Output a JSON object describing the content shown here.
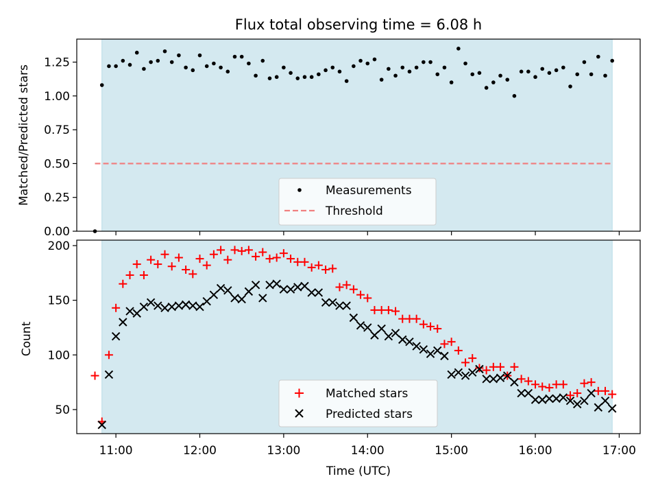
{
  "chart_data": [
    {
      "type": "scatter",
      "title": "Flux total observing time = 6.08 h",
      "ylabel": "Matched/Predicted stars",
      "xlabel": "",
      "xlim": [
        "10:32",
        "17:15"
      ],
      "ylim": [
        0,
        1.42
      ],
      "yticks": [
        "0.00",
        "0.25",
        "0.50",
        "0.75",
        "1.00",
        "1.25"
      ],
      "shaded_interval": [
        "10:50",
        "16:55"
      ],
      "shade_color": "#d4e9f0",
      "legend_position": "lower center",
      "series": [
        {
          "name": "Measurements",
          "marker": "dot",
          "color": "#000000",
          "x": [
            "10:45",
            "10:50",
            "10:55",
            "11:00",
            "11:05",
            "11:10",
            "11:15",
            "11:20",
            "11:25",
            "11:30",
            "11:35",
            "11:40",
            "11:45",
            "11:50",
            "11:55",
            "12:00",
            "12:05",
            "12:10",
            "12:15",
            "12:20",
            "12:25",
            "12:30",
            "12:35",
            "12:40",
            "12:45",
            "12:50",
            "12:55",
            "13:00",
            "13:05",
            "13:10",
            "13:15",
            "13:20",
            "13:25",
            "13:30",
            "13:35",
            "13:40",
            "13:45",
            "13:50",
            "13:55",
            "14:00",
            "14:05",
            "14:10",
            "14:15",
            "14:20",
            "14:25",
            "14:30",
            "14:35",
            "14:40",
            "14:45",
            "14:50",
            "14:55",
            "15:00",
            "15:05",
            "15:10",
            "15:15",
            "15:20",
            "15:25",
            "15:30",
            "15:35",
            "15:40",
            "15:45",
            "15:50",
            "15:55",
            "16:00",
            "16:05",
            "16:10",
            "16:15",
            "16:20",
            "16:25",
            "16:30",
            "16:35",
            "16:40",
            "16:45",
            "16:50",
            "16:55"
          ],
          "y": [
            0.0,
            1.08,
            1.22,
            1.22,
            1.26,
            1.23,
            1.32,
            1.2,
            1.25,
            1.26,
            1.33,
            1.25,
            1.3,
            1.21,
            1.19,
            1.3,
            1.22,
            1.24,
            1.21,
            1.18,
            1.29,
            1.29,
            1.24,
            1.15,
            1.26,
            1.13,
            1.14,
            1.21,
            1.17,
            1.13,
            1.14,
            1.14,
            1.16,
            1.19,
            1.21,
            1.18,
            1.11,
            1.22,
            1.26,
            1.24,
            1.27,
            1.12,
            1.2,
            1.15,
            1.21,
            1.18,
            1.21,
            1.25,
            1.25,
            1.16,
            1.21,
            1.1,
            1.35,
            1.24,
            1.16,
            1.17,
            1.06,
            1.1,
            1.15,
            1.12,
            1.0,
            1.18,
            1.18,
            1.14,
            1.2,
            1.17,
            1.19,
            1.21,
            1.07,
            1.16,
            1.25,
            1.16,
            1.29,
            1.15,
            1.26
          ]
        },
        {
          "name": "Threshold",
          "type": "line",
          "style": "dashed",
          "color": "#f08080",
          "x": [
            "10:45",
            "16:55"
          ],
          "y": [
            0.5,
            0.5
          ]
        }
      ]
    },
    {
      "type": "scatter",
      "title": "",
      "ylabel": "Count",
      "xlabel": "Time (UTC)",
      "xlim": [
        "10:32",
        "17:15"
      ],
      "ylim": [
        28,
        205
      ],
      "yticks": [
        "50",
        "100",
        "150",
        "200"
      ],
      "xticks": [
        "11:00",
        "12:00",
        "13:00",
        "14:00",
        "15:00",
        "16:00",
        "17:00"
      ],
      "shaded_interval": [
        "10:50",
        "16:55"
      ],
      "shade_color": "#d4e9f0",
      "legend_position": "lower center",
      "series": [
        {
          "name": "Matched stars",
          "marker": "plus",
          "color": "#ff0000",
          "x": [
            "10:45",
            "10:50",
            "10:55",
            "11:00",
            "11:05",
            "11:10",
            "11:15",
            "11:20",
            "11:25",
            "11:30",
            "11:35",
            "11:40",
            "11:45",
            "11:50",
            "11:55",
            "12:00",
            "12:05",
            "12:10",
            "12:15",
            "12:20",
            "12:25",
            "12:30",
            "12:35",
            "12:40",
            "12:45",
            "12:50",
            "12:55",
            "13:00",
            "13:05",
            "13:10",
            "13:15",
            "13:20",
            "13:25",
            "13:30",
            "13:35",
            "13:40",
            "13:45",
            "13:50",
            "13:55",
            "14:00",
            "14:05",
            "14:10",
            "14:15",
            "14:20",
            "14:25",
            "14:30",
            "14:35",
            "14:40",
            "14:45",
            "14:50",
            "14:55",
            "15:00",
            "15:05",
            "15:10",
            "15:15",
            "15:20",
            "15:25",
            "15:30",
            "15:35",
            "15:40",
            "15:45",
            "15:50",
            "15:55",
            "16:00",
            "16:05",
            "16:10",
            "16:15",
            "16:20",
            "16:25",
            "16:30",
            "16:35",
            "16:40",
            "16:45",
            "16:50",
            "16:55"
          ],
          "y": [
            81,
            39,
            100,
            143,
            165,
            173,
            183,
            173,
            187,
            183,
            192,
            181,
            189,
            178,
            174,
            188,
            182,
            192,
            196,
            187,
            196,
            195,
            196,
            190,
            194,
            188,
            189,
            193,
            188,
            185,
            185,
            180,
            182,
            178,
            179,
            162,
            164,
            160,
            155,
            152,
            141,
            141,
            141,
            140,
            133,
            133,
            133,
            128,
            126,
            124,
            110,
            112,
            104,
            93,
            97,
            88,
            86,
            89,
            89,
            81,
            89,
            78,
            76,
            73,
            71,
            70,
            73,
            73,
            63,
            65,
            74,
            75,
            67,
            67,
            64
          ]
        },
        {
          "name": "Predicted stars",
          "marker": "x",
          "color": "#000000",
          "x": [
            "10:45",
            "10:50",
            "10:55",
            "11:00",
            "11:05",
            "11:10",
            "11:15",
            "11:20",
            "11:25",
            "11:30",
            "11:35",
            "11:40",
            "11:45",
            "11:50",
            "11:55",
            "12:00",
            "12:05",
            "12:10",
            "12:15",
            "12:20",
            "12:25",
            "12:30",
            "12:35",
            "12:40",
            "12:45",
            "12:50",
            "12:55",
            "13:00",
            "13:05",
            "13:10",
            "13:15",
            "13:20",
            "13:25",
            "13:30",
            "13:35",
            "13:40",
            "13:45",
            "13:50",
            "13:55",
            "14:00",
            "14:05",
            "14:10",
            "14:15",
            "14:20",
            "14:25",
            "14:30",
            "14:35",
            "14:40",
            "14:45",
            "14:50",
            "14:55",
            "15:00",
            "15:05",
            "15:10",
            "15:15",
            "15:20",
            "15:25",
            "15:30",
            "15:35",
            "15:40",
            "15:45",
            "15:50",
            "15:55",
            "16:00",
            "16:05",
            "16:10",
            "16:15",
            "16:20",
            "16:25",
            "16:30",
            "16:35",
            "16:40",
            "16:45",
            "16:50",
            "16:55"
          ],
          "y": [
            null,
            36,
            82,
            117,
            130,
            140,
            138,
            144,
            148,
            145,
            143,
            144,
            145,
            146,
            145,
            144,
            149,
            155,
            161,
            159,
            152,
            151,
            158,
            164,
            152,
            164,
            165,
            160,
            160,
            162,
            163,
            157,
            157,
            148,
            148,
            145,
            145,
            134,
            127,
            125,
            118,
            124,
            117,
            120,
            114,
            112,
            108,
            105,
            101,
            104,
            99,
            82,
            84,
            81,
            84,
            87,
            78,
            78,
            79,
            81,
            75,
            65,
            65,
            59,
            59,
            60,
            60,
            61,
            58,
            55,
            58,
            65,
            52,
            58,
            51
          ]
        }
      ]
    }
  ]
}
